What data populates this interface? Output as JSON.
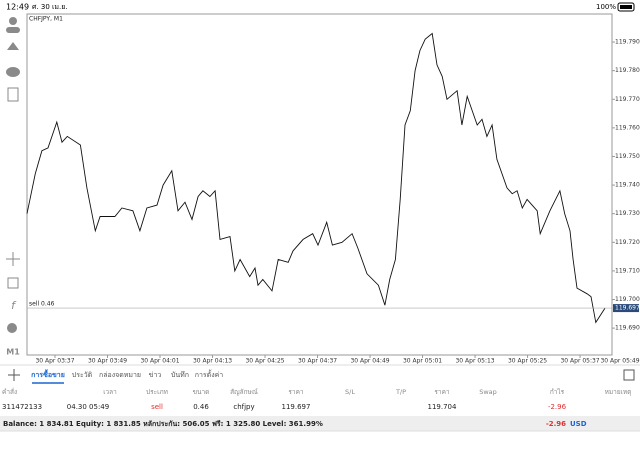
{
  "status_bar": {
    "time": "12:49",
    "date": "ศ. 30 เม.ย.",
    "battery": "100%"
  },
  "toolbar": {
    "timeframe": "M1"
  },
  "chart_data": {
    "type": "line",
    "title": "CHFJPY, M1",
    "color": "#111111",
    "x": [
      -6.4,
      -4.5,
      -3.0,
      -1.6,
      0.4,
      1.6,
      2.8,
      5.8,
      7.3,
      9.2,
      10.3,
      13.7,
      15.3,
      17.8,
      19.4,
      21.0,
      23.3,
      24.7,
      26.7,
      28.1,
      29.7,
      31.3,
      32.7,
      33.8,
      35.4,
      36.6,
      37.7,
      40.0,
      41.1,
      42.3,
      44.5,
      45.7,
      46.4,
      47.5,
      49.6,
      51.0,
      53.3,
      54.4,
      56.7,
      58.9,
      60.1,
      62.1,
      63.4,
      65.6,
      67.9,
      69.2,
      71.3,
      73.9,
      75.4,
      76.5,
      77.8,
      78.9,
      80.0,
      81.2,
      82.3,
      83.4,
      84.6,
      86.2,
      87.3,
      88.5,
      89.6,
      91.9,
      93.0,
      94.2,
      96.5,
      97.6,
      98.7,
      99.9,
      101.0,
      103.3,
      104.5,
      105.6,
      106.8,
      107.9,
      110.2,
      110.9,
      113.1,
      115.4,
      116.5,
      117.7,
      118.4,
      119.3,
      121.6,
      122.5,
      123.6,
      125.7
    ],
    "values": [
      119.73,
      119.744,
      119.752,
      119.753,
      119.762,
      119.755,
      119.757,
      119.754,
      119.739,
      119.724,
      119.729,
      119.729,
      119.732,
      119.731,
      119.724,
      119.732,
      119.733,
      119.74,
      119.745,
      119.731,
      119.734,
      119.728,
      119.736,
      119.738,
      119.736,
      119.738,
      119.721,
      119.722,
      119.71,
      119.714,
      119.708,
      119.711,
      119.705,
      119.707,
      119.703,
      119.714,
      119.713,
      119.717,
      119.721,
      119.723,
      119.719,
      119.727,
      119.719,
      119.72,
      119.723,
      119.718,
      119.709,
      119.705,
      119.698,
      119.707,
      119.714,
      119.735,
      119.761,
      119.766,
      119.78,
      119.787,
      119.791,
      119.793,
      119.782,
      119.778,
      119.77,
      119.773,
      119.761,
      119.771,
      119.761,
      119.763,
      119.757,
      119.761,
      119.749,
      119.739,
      119.737,
      119.738,
      119.732,
      119.735,
      119.731,
      119.723,
      119.731,
      119.738,
      119.73,
      119.724,
      119.714,
      119.704,
      119.702,
      119.701,
      119.692,
      119.697
    ],
    "xlim": [
      -6.4,
      127.3
    ],
    "xticks": [
      {
        "value": 0,
        "label": "30 Apr 03:37"
      },
      {
        "value": 12,
        "label": "30 Apr 03:49"
      },
      {
        "value": 24,
        "label": "30 Apr 04:01"
      },
      {
        "value": 36,
        "label": "30 Apr 04:13"
      },
      {
        "value": 48,
        "label": "30 Apr 04:25"
      },
      {
        "value": 60,
        "label": "30 Apr 04:37"
      },
      {
        "value": 72,
        "label": "30 Apr 04:49"
      },
      {
        "value": 84,
        "label": "30 Apr 05:01"
      },
      {
        "value": 96,
        "label": "30 Apr 05:13"
      },
      {
        "value": 108,
        "label": "30 Apr 05:25"
      },
      {
        "value": 120,
        "label": "30 Apr 05:37"
      },
      {
        "value": 132,
        "label": "30 Apr 05:49"
      }
    ],
    "ylim": [
      119.6806,
      119.7998
    ],
    "yticks": [
      {
        "value": 119.69,
        "label": "119.690"
      },
      {
        "value": 119.7,
        "label": "119.700"
      },
      {
        "value": 119.71,
        "label": "119.710"
      },
      {
        "value": 119.72,
        "label": "119.720"
      },
      {
        "value": 119.73,
        "label": "119.730"
      },
      {
        "value": 119.74,
        "label": "119.740"
      },
      {
        "value": 119.75,
        "label": "119.750"
      },
      {
        "value": 119.76,
        "label": "119.760"
      },
      {
        "value": 119.77,
        "label": "119.770"
      },
      {
        "value": 119.78,
        "label": "119.780"
      },
      {
        "value": 119.79,
        "label": "119.790"
      }
    ],
    "current_price": 119.697,
    "order_label": "sell 0.46"
  },
  "tabs": [
    {
      "label": "การซื้อขาย",
      "active": true
    },
    {
      "label": "ประวัติ"
    },
    {
      "label": "กล่องจดหมาย"
    },
    {
      "label": "ข่าว"
    },
    {
      "label": "บันทึก"
    },
    {
      "label": "การตั้งค่า"
    }
  ],
  "table": {
    "columns": [
      "คำสั่ง",
      "เวลา",
      "ประเภท",
      "ขนาด",
      "สัญลักษณ์",
      "ราคา",
      "S/L",
      "T/P",
      "ราคา",
      "Swap",
      "กำไร",
      "หมายเหตุ"
    ],
    "rows": [
      [
        "311472133",
        "04.30 05:49",
        "sell",
        "0.46",
        "chfjpy",
        "119.697",
        null,
        null,
        "119.704",
        null,
        "-2.96",
        null
      ]
    ]
  },
  "summary": {
    "text": "Balance: 1 834.81 Equity: 1 831.85 หลักประกัน: 506.05 ฟรี: 1 325.80 Level: 361.99%",
    "profit": "-2.96",
    "currency": "USD"
  }
}
